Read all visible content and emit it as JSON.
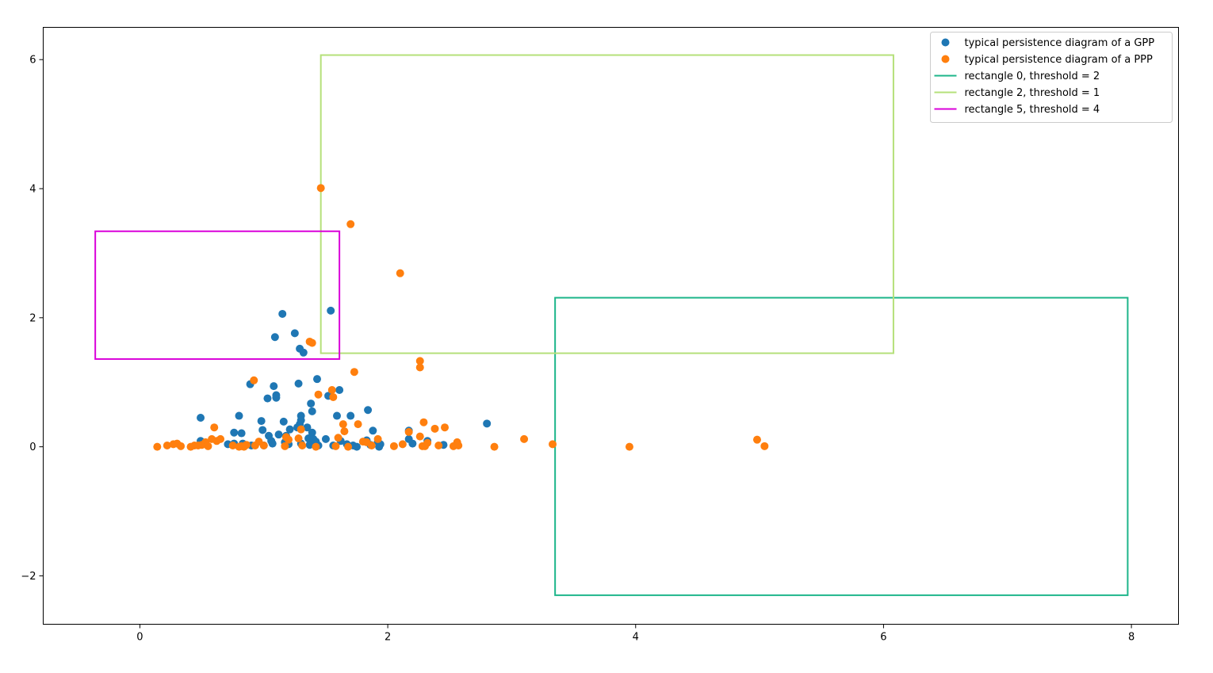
{
  "chart_data": {
    "type": "scatter",
    "title": "",
    "xlabel": "",
    "ylabel": "",
    "xlim": [
      -0.78,
      8.38
    ],
    "ylim": [
      -2.75,
      6.5
    ],
    "xticks": [
      0,
      2,
      4,
      6,
      8
    ],
    "yticks": [
      -2,
      0,
      2,
      4,
      6
    ],
    "grid": false,
    "legend_position": "top-right",
    "series": [
      {
        "name": "typical persistence diagram of a GPP",
        "kind": "scatter",
        "color": "#1f77b4",
        "points": [
          [
            0.49,
            0.45
          ],
          [
            0.49,
            0.09
          ],
          [
            0.5,
            0.04
          ],
          [
            0.71,
            0.04
          ],
          [
            0.76,
            0.22
          ],
          [
            0.76,
            0.05
          ],
          [
            0.8,
            0.48
          ],
          [
            0.82,
            0.21
          ],
          [
            0.83,
            0.05
          ],
          [
            0.89,
            0.97
          ],
          [
            0.9,
            0.02
          ],
          [
            0.98,
            0.4
          ],
          [
            0.99,
            0.26
          ],
          [
            1.0,
            0.02
          ],
          [
            1.03,
            0.75
          ],
          [
            1.04,
            0.17
          ],
          [
            1.06,
            0.09
          ],
          [
            1.07,
            0.05
          ],
          [
            1.08,
            0.94
          ],
          [
            1.1,
            0.8
          ],
          [
            1.1,
            0.76
          ],
          [
            1.09,
            1.7
          ],
          [
            1.12,
            0.19
          ],
          [
            1.15,
            2.06
          ],
          [
            1.16,
            0.39
          ],
          [
            1.17,
            0.07
          ],
          [
            1.18,
            0.17
          ],
          [
            1.2,
            0.04
          ],
          [
            1.21,
            0.27
          ],
          [
            1.25,
            1.76
          ],
          [
            1.27,
            0.3
          ],
          [
            1.28,
            0.98
          ],
          [
            1.29,
            1.52
          ],
          [
            1.29,
            0.35
          ],
          [
            1.3,
            0.48
          ],
          [
            1.3,
            0.41
          ],
          [
            1.3,
            0.05
          ],
          [
            1.32,
            1.46
          ],
          [
            1.35,
            0.3
          ],
          [
            1.36,
            0.13
          ],
          [
            1.37,
            0.03
          ],
          [
            1.38,
            0.67
          ],
          [
            1.39,
            0.55
          ],
          [
            1.39,
            0.22
          ],
          [
            1.4,
            0.12
          ],
          [
            1.42,
            0.08
          ],
          [
            1.43,
            1.05
          ],
          [
            1.44,
            0.02
          ],
          [
            1.5,
            0.12
          ],
          [
            1.52,
            0.79
          ],
          [
            1.54,
            2.11
          ],
          [
            1.56,
            0.02
          ],
          [
            1.59,
            0.48
          ],
          [
            1.61,
            0.88
          ],
          [
            1.62,
            0.09
          ],
          [
            1.67,
            0.04
          ],
          [
            1.7,
            0.48
          ],
          [
            1.72,
            0.02
          ],
          [
            1.75,
            0.0
          ],
          [
            1.82,
            0.08
          ],
          [
            1.83,
            0.1
          ],
          [
            1.84,
            0.57
          ],
          [
            1.86,
            0.03
          ],
          [
            1.88,
            0.25
          ],
          [
            1.92,
            0.08
          ],
          [
            1.93,
            0.0
          ],
          [
            1.94,
            0.04
          ],
          [
            2.17,
            0.25
          ],
          [
            2.17,
            0.12
          ],
          [
            2.2,
            0.05
          ],
          [
            2.32,
            0.09
          ],
          [
            2.45,
            0.03
          ],
          [
            2.8,
            0.36
          ]
        ]
      },
      {
        "name": "typical persistence diagram of a PPP",
        "kind": "scatter",
        "color": "#ff7f0e",
        "points": [
          [
            0.14,
            0.0
          ],
          [
            0.22,
            0.02
          ],
          [
            0.27,
            0.04
          ],
          [
            0.3,
            0.05
          ],
          [
            0.33,
            0.01
          ],
          [
            0.41,
            0.0
          ],
          [
            0.44,
            0.02
          ],
          [
            0.47,
            0.02
          ],
          [
            0.5,
            0.03
          ],
          [
            0.53,
            0.07
          ],
          [
            0.55,
            0.01
          ],
          [
            0.58,
            0.12
          ],
          [
            0.6,
            0.3
          ],
          [
            0.62,
            0.09
          ],
          [
            0.65,
            0.12
          ],
          [
            0.75,
            0.02
          ],
          [
            0.8,
            0.0
          ],
          [
            0.82,
            0.01
          ],
          [
            0.84,
            0.0
          ],
          [
            0.86,
            0.03
          ],
          [
            0.92,
            1.03
          ],
          [
            0.93,
            0.02
          ],
          [
            0.96,
            0.08
          ],
          [
            1.0,
            0.02
          ],
          [
            1.17,
            0.01
          ],
          [
            1.18,
            0.15
          ],
          [
            1.2,
            0.11
          ],
          [
            1.28,
            0.13
          ],
          [
            1.3,
            0.27
          ],
          [
            1.31,
            0.02
          ],
          [
            1.37,
            1.63
          ],
          [
            1.39,
            1.61
          ],
          [
            1.42,
            0.0
          ],
          [
            1.44,
            0.81
          ],
          [
            1.46,
            4.01
          ],
          [
            1.55,
            0.88
          ],
          [
            1.56,
            0.77
          ],
          [
            1.58,
            0.01
          ],
          [
            1.6,
            0.14
          ],
          [
            1.64,
            0.35
          ],
          [
            1.65,
            0.24
          ],
          [
            1.68,
            0.0
          ],
          [
            1.7,
            3.45
          ],
          [
            1.73,
            1.16
          ],
          [
            1.76,
            0.35
          ],
          [
            1.8,
            0.08
          ],
          [
            1.83,
            0.07
          ],
          [
            1.87,
            0.02
          ],
          [
            1.92,
            0.12
          ],
          [
            2.05,
            0.01
          ],
          [
            2.1,
            2.69
          ],
          [
            2.12,
            0.04
          ],
          [
            2.17,
            0.23
          ],
          [
            2.26,
            1.33
          ],
          [
            2.26,
            1.23
          ],
          [
            2.26,
            0.16
          ],
          [
            2.28,
            0.01
          ],
          [
            2.29,
            0.38
          ],
          [
            2.3,
            0.01
          ],
          [
            2.32,
            0.06
          ],
          [
            2.38,
            0.28
          ],
          [
            2.41,
            0.02
          ],
          [
            2.46,
            0.3
          ],
          [
            2.53,
            0.01
          ],
          [
            2.56,
            0.07
          ],
          [
            2.57,
            0.02
          ],
          [
            2.86,
            0.0
          ],
          [
            3.1,
            0.12
          ],
          [
            3.33,
            0.04
          ],
          [
            3.95,
            0.0
          ],
          [
            4.98,
            0.11
          ],
          [
            5.04,
            0.01
          ]
        ]
      }
    ],
    "rectangles": [
      {
        "name": "rectangle 0, threshold = 2",
        "color": "#1db58a",
        "x0": 3.35,
        "x1": 7.97,
        "y0": -2.3,
        "y1": 2.31
      },
      {
        "name": "rectangle 2, threshold = 1",
        "color": "#b5e07a",
        "x0": 1.46,
        "x1": 6.08,
        "y0": 1.45,
        "y1": 6.07
      },
      {
        "name": "rectangle 5, threshold = 4",
        "color": "#d900d9",
        "x0": -0.36,
        "x1": 1.61,
        "y0": 1.36,
        "y1": 3.34
      }
    ]
  }
}
